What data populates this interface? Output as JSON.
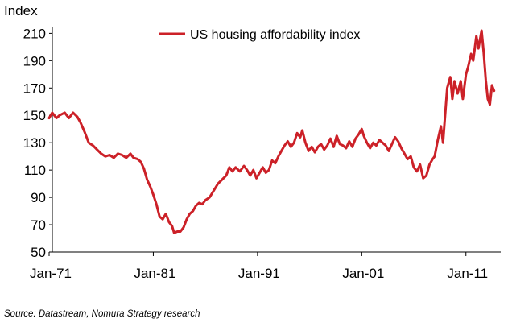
{
  "chart_data": {
    "type": "line",
    "title": "",
    "ylabel": "Index",
    "xlabel": "",
    "ylim": [
      50,
      215
    ],
    "yticks": [
      50,
      70,
      90,
      110,
      130,
      150,
      170,
      190,
      210
    ],
    "xticks": [
      {
        "label": "Jan-71",
        "t": 1971.0
      },
      {
        "label": "Jan-81",
        "t": 1981.0
      },
      {
        "label": "Jan-91",
        "t": 1991.0
      },
      {
        "label": "Jan-01",
        "t": 2001.0
      },
      {
        "label": "Jan-11",
        "t": 2011.0
      }
    ],
    "xlim": [
      1971.0,
      2013.8
    ],
    "legend": {
      "position": "top-center",
      "entries": [
        "US housing affordability index"
      ]
    },
    "series": [
      {
        "name": "US housing affordability index",
        "color": "#cc2128",
        "points": [
          [
            1971.0,
            148
          ],
          [
            1971.3,
            152
          ],
          [
            1971.7,
            148
          ],
          [
            1972.0,
            150
          ],
          [
            1972.5,
            152
          ],
          [
            1972.9,
            148
          ],
          [
            1973.3,
            152
          ],
          [
            1973.7,
            149
          ],
          [
            1974.0,
            145
          ],
          [
            1974.4,
            138
          ],
          [
            1974.8,
            130
          ],
          [
            1975.2,
            128
          ],
          [
            1975.6,
            125
          ],
          [
            1976.0,
            122
          ],
          [
            1976.4,
            120
          ],
          [
            1976.8,
            121
          ],
          [
            1977.2,
            119
          ],
          [
            1977.6,
            122
          ],
          [
            1978.0,
            121
          ],
          [
            1978.4,
            119
          ],
          [
            1978.8,
            122
          ],
          [
            1979.1,
            119
          ],
          [
            1979.5,
            118
          ],
          [
            1979.8,
            116
          ],
          [
            1980.1,
            111
          ],
          [
            1980.4,
            103
          ],
          [
            1980.7,
            98
          ],
          [
            1981.0,
            92
          ],
          [
            1981.3,
            85
          ],
          [
            1981.6,
            76
          ],
          [
            1981.9,
            74
          ],
          [
            1982.2,
            78
          ],
          [
            1982.5,
            72
          ],
          [
            1982.8,
            69
          ],
          [
            1983.0,
            64
          ],
          [
            1983.3,
            65
          ],
          [
            1983.6,
            65
          ],
          [
            1983.9,
            68
          ],
          [
            1984.2,
            74
          ],
          [
            1984.5,
            78
          ],
          [
            1984.8,
            80
          ],
          [
            1985.1,
            84
          ],
          [
            1985.4,
            86
          ],
          [
            1985.7,
            85
          ],
          [
            1986.0,
            88
          ],
          [
            1986.4,
            90
          ],
          [
            1986.8,
            95
          ],
          [
            1987.2,
            100
          ],
          [
            1987.6,
            103
          ],
          [
            1988.0,
            106
          ],
          [
            1988.3,
            112
          ],
          [
            1988.6,
            109
          ],
          [
            1988.9,
            112
          ],
          [
            1989.3,
            109
          ],
          [
            1989.7,
            113
          ],
          [
            1990.0,
            110
          ],
          [
            1990.3,
            106
          ],
          [
            1990.6,
            110
          ],
          [
            1990.9,
            104
          ],
          [
            1991.2,
            108
          ],
          [
            1991.5,
            112
          ],
          [
            1991.8,
            108
          ],
          [
            1992.1,
            110
          ],
          [
            1992.4,
            117
          ],
          [
            1992.7,
            115
          ],
          [
            1993.0,
            120
          ],
          [
            1993.3,
            124
          ],
          [
            1993.6,
            128
          ],
          [
            1993.9,
            131
          ],
          [
            1994.2,
            127
          ],
          [
            1994.5,
            130
          ],
          [
            1994.8,
            137
          ],
          [
            1995.1,
            134
          ],
          [
            1995.3,
            139
          ],
          [
            1995.6,
            130
          ],
          [
            1995.9,
            124
          ],
          [
            1996.2,
            127
          ],
          [
            1996.5,
            123
          ],
          [
            1996.8,
            127
          ],
          [
            1997.1,
            129
          ],
          [
            1997.4,
            125
          ],
          [
            1997.7,
            128
          ],
          [
            1998.0,
            133
          ],
          [
            1998.3,
            127
          ],
          [
            1998.6,
            135
          ],
          [
            1998.9,
            129
          ],
          [
            1999.2,
            128
          ],
          [
            1999.5,
            126
          ],
          [
            1999.8,
            131
          ],
          [
            2000.1,
            127
          ],
          [
            2000.4,
            133
          ],
          [
            2000.7,
            136
          ],
          [
            2001.0,
            140
          ],
          [
            2001.2,
            135
          ],
          [
            2001.5,
            130
          ],
          [
            2001.8,
            126
          ],
          [
            2002.1,
            130
          ],
          [
            2002.4,
            128
          ],
          [
            2002.7,
            132
          ],
          [
            2003.0,
            130
          ],
          [
            2003.3,
            128
          ],
          [
            2003.6,
            124
          ],
          [
            2003.9,
            129
          ],
          [
            2004.2,
            134
          ],
          [
            2004.5,
            131
          ],
          [
            2004.8,
            126
          ],
          [
            2005.1,
            122
          ],
          [
            2005.4,
            118
          ],
          [
            2005.7,
            120
          ],
          [
            2006.0,
            112
          ],
          [
            2006.3,
            109
          ],
          [
            2006.6,
            114
          ],
          [
            2006.9,
            104
          ],
          [
            2007.2,
            106
          ],
          [
            2007.5,
            114
          ],
          [
            2007.8,
            118
          ],
          [
            2008.0,
            120
          ],
          [
            2008.3,
            132
          ],
          [
            2008.6,
            142
          ],
          [
            2008.8,
            130
          ],
          [
            2009.0,
            150
          ],
          [
            2009.2,
            170
          ],
          [
            2009.5,
            178
          ],
          [
            2009.7,
            162
          ],
          [
            2009.9,
            175
          ],
          [
            2010.2,
            166
          ],
          [
            2010.5,
            175
          ],
          [
            2010.7,
            162
          ],
          [
            2011.0,
            180
          ],
          [
            2011.2,
            185
          ],
          [
            2011.5,
            195
          ],
          [
            2011.7,
            190
          ],
          [
            2012.0,
            208
          ],
          [
            2012.2,
            199
          ],
          [
            2012.5,
            212
          ],
          [
            2012.7,
            196
          ],
          [
            2012.9,
            176
          ],
          [
            2013.1,
            162
          ],
          [
            2013.3,
            158
          ],
          [
            2013.5,
            172
          ],
          [
            2013.7,
            168
          ]
        ]
      }
    ]
  },
  "source": "Source: Datastream, Nomura Strategy research"
}
